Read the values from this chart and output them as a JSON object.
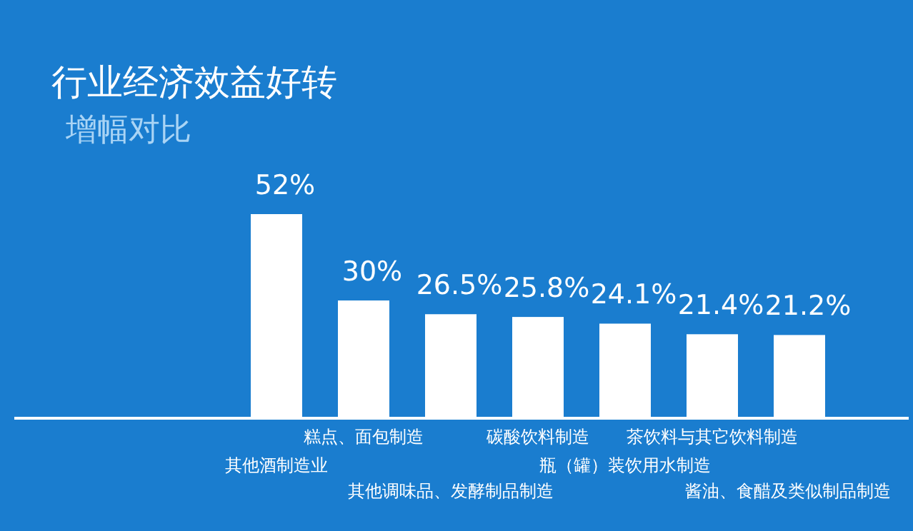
{
  "chart_data": {
    "type": "bar",
    "title": "行业经济效益好转",
    "subtitle": "增幅对比",
    "categories": [
      "其他酒制造业",
      "糕点、面包制造",
      "其他调味品、发酵制品制造",
      "碳酸饮料制造",
      "瓶（罐）装饮用水制造",
      "茶饮料与其它饮料制造",
      "酱油、食醋及类似制品制造"
    ],
    "values": [
      52,
      30,
      26.5,
      25.8,
      24.1,
      21.4,
      21.2
    ],
    "value_labels": [
      "52%",
      "30%",
      "26.5%",
      "25.8%",
      "24.1%",
      "21.4%",
      "21.2%"
    ],
    "color": "#ffffff"
  }
}
